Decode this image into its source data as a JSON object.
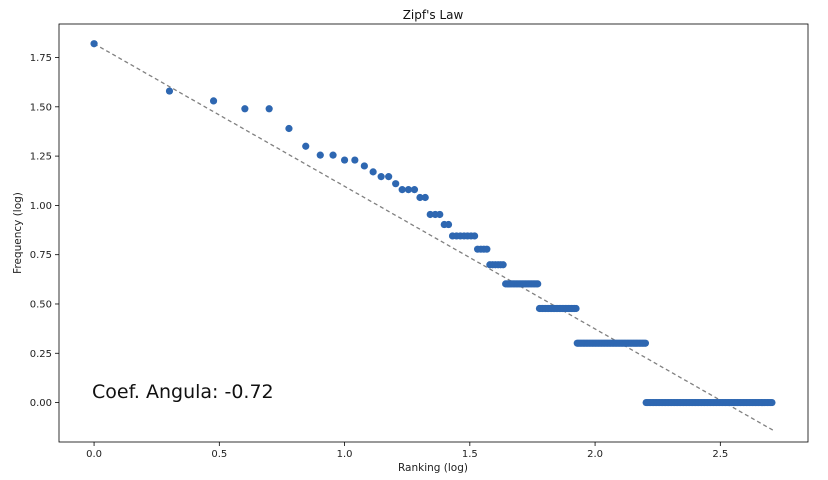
{
  "chart_data": {
    "type": "scatter",
    "title": "Zipf's Law",
    "xlabel": "Ranking (log)",
    "ylabel": "Frequency (log)",
    "xlim": [
      -0.14,
      2.85
    ],
    "ylim": [
      -0.2,
      1.92
    ],
    "xticks": [
      0.0,
      0.5,
      1.0,
      1.5,
      2.0,
      2.5
    ],
    "xtick_labels": [
      "0.0",
      "0.5",
      "1.0",
      "1.5",
      "2.0",
      "2.5"
    ],
    "yticks": [
      0.0,
      0.25,
      0.5,
      0.75,
      1.0,
      1.25,
      1.5,
      1.75
    ],
    "ytick_labels": [
      "0.00",
      "0.25",
      "0.50",
      "0.75",
      "1.00",
      "1.25",
      "1.50",
      "1.75"
    ],
    "grid": false,
    "point_color": "#2e67b1",
    "fit_color": "#808080",
    "annotation": "Coef. Angula: -0.72",
    "fit_line": {
      "x": [
        0.0,
        2.71
      ],
      "y": [
        1.82,
        -0.14
      ]
    },
    "points": [
      [
        0.0,
        1.82
      ],
      [
        0.301,
        1.58
      ],
      [
        0.477,
        1.53
      ],
      [
        0.602,
        1.49
      ],
      [
        0.699,
        1.49
      ],
      [
        0.778,
        1.39
      ],
      [
        0.845,
        1.3
      ],
      [
        0.903,
        1.255
      ],
      [
        0.954,
        1.255
      ],
      [
        1.0,
        1.23
      ],
      [
        1.041,
        1.23
      ],
      [
        1.079,
        1.2
      ],
      [
        1.114,
        1.17
      ],
      [
        1.146,
        1.146
      ],
      [
        1.176,
        1.146
      ],
      [
        1.204,
        1.11
      ],
      [
        1.23,
        1.08
      ],
      [
        1.255,
        1.08
      ],
      [
        1.279,
        1.08
      ],
      [
        1.301,
        1.04
      ],
      [
        1.322,
        1.04
      ],
      [
        1.342,
        0.954
      ],
      [
        1.362,
        0.954
      ],
      [
        1.38,
        0.954
      ],
      [
        1.398,
        0.903
      ],
      [
        1.415,
        0.903
      ],
      [
        1.431,
        0.845
      ],
      [
        1.447,
        0.845
      ],
      [
        1.462,
        0.845
      ],
      [
        1.477,
        0.845
      ],
      [
        1.491,
        0.845
      ],
      [
        1.505,
        0.845
      ],
      [
        1.519,
        0.845
      ],
      [
        1.531,
        0.778
      ],
      [
        1.544,
        0.778
      ],
      [
        1.556,
        0.778
      ],
      [
        1.568,
        0.778
      ],
      [
        1.58,
        0.699
      ],
      [
        1.591,
        0.699
      ],
      [
        1.602,
        0.699
      ],
      [
        1.613,
        0.699
      ],
      [
        1.623,
        0.699
      ],
      [
        1.633,
        0.699
      ]
    ],
    "runs": [
      {
        "y": 0.602,
        "x_start": 1.643,
        "x_end": 1.771
      },
      {
        "y": 0.477,
        "x_start": 1.778,
        "x_end": 1.924
      },
      {
        "y": 0.301,
        "x_start": 1.929,
        "x_end": 2.201
      },
      {
        "y": 0.0,
        "x_start": 2.204,
        "x_end": 2.706
      }
    ]
  }
}
